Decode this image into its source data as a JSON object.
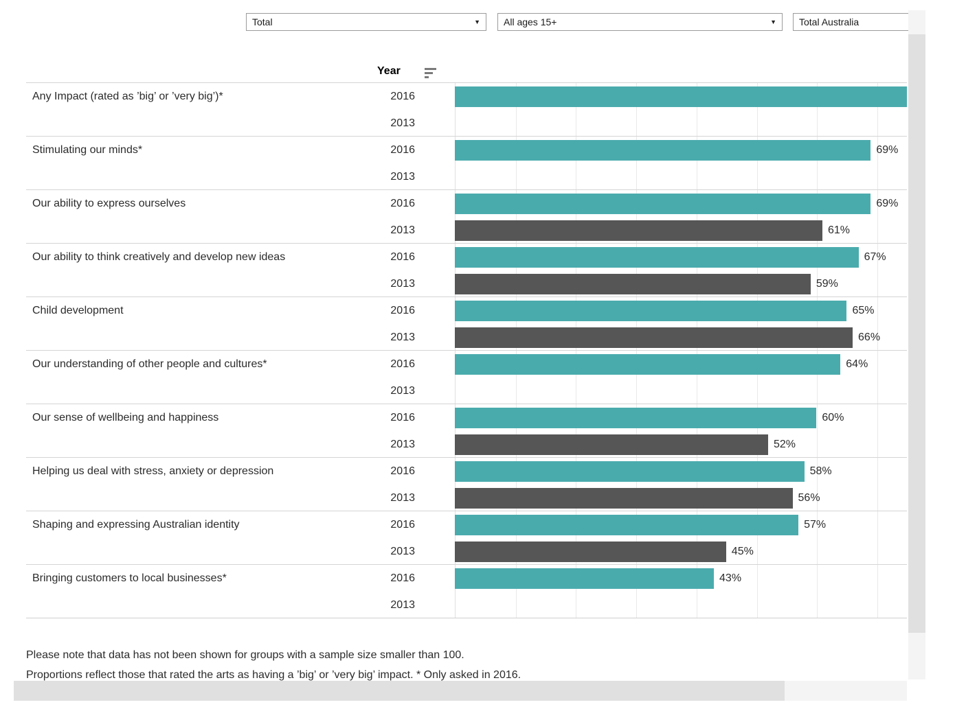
{
  "filters": {
    "dropdowns": [
      {
        "value": "Total"
      },
      {
        "value": "All ages 15+"
      },
      {
        "value": "Total Australia"
      }
    ]
  },
  "table": {
    "year_header": "Year",
    "year_labels": [
      "2016",
      "2013"
    ],
    "rows": [
      {
        "label": "Any Impact (rated as ’big’ or ’very big’)*",
        "y2016": {
          "width_pct": 100,
          "label": ""
        },
        "y2013": null
      },
      {
        "label": "Stimulating our minds*",
        "y2016": {
          "width_pct": 92,
          "label": "69%"
        },
        "y2013": null
      },
      {
        "label": "Our ability to express ourselves",
        "y2016": {
          "width_pct": 92,
          "label": "69%"
        },
        "y2013": {
          "width_pct": 81.3,
          "label": "61%"
        }
      },
      {
        "label": "Our ability to think creatively and develop new ideas",
        "y2016": {
          "width_pct": 89.3,
          "label": "67%"
        },
        "y2013": {
          "width_pct": 78.7,
          "label": "59%"
        }
      },
      {
        "label": "Child development",
        "y2016": {
          "width_pct": 86.7,
          "label": "65%"
        },
        "y2013": {
          "width_pct": 88,
          "label": "66%"
        }
      },
      {
        "label": "Our understanding of other people and cultures*",
        "y2016": {
          "width_pct": 85.3,
          "label": "64%"
        },
        "y2013": null
      },
      {
        "label": "Our sense of wellbeing and happiness",
        "y2016": {
          "width_pct": 80,
          "label": "60%"
        },
        "y2013": {
          "width_pct": 69.3,
          "label": "52%"
        }
      },
      {
        "label": "Helping us deal with stress, anxiety or depression",
        "y2016": {
          "width_pct": 77.3,
          "label": "58%"
        },
        "y2013": {
          "width_pct": 74.7,
          "label": "56%"
        }
      },
      {
        "label": "Shaping and expressing Australian identity",
        "y2016": {
          "width_pct": 76,
          "label": "57%"
        },
        "y2013": {
          "width_pct": 60,
          "label": "45%"
        }
      },
      {
        "label": "Bringing customers to local businesses*",
        "y2016": {
          "width_pct": 57.3,
          "label": "43%"
        },
        "y2013": null
      }
    ]
  },
  "footnotes": {
    "line1": "Please note that data has not been shown for groups with a sample size smaller than 100.",
    "line2": "Proportions reflect those that rated the arts as having a ’big’ or ’very big’ impact. * Only asked in 2016."
  },
  "colors": {
    "teal_2016": "#4aabad",
    "gray_2013": "#565656",
    "separator": "#d4d4d4",
    "gridline": "#e9e9e9"
  },
  "chart_data": {
    "type": "bar",
    "orientation": "horizontal",
    "title": "",
    "categories": [
      "Any Impact (rated as ’big’ or ’very big’)*",
      "Stimulating our minds*",
      "Our ability to express ourselves",
      "Our ability to think creatively and develop new ideas",
      "Child development",
      "Our understanding of other people and cultures*",
      "Our sense of wellbeing and happiness",
      "Helping us deal with stress, anxiety or depression",
      "Shaping and expressing Australian identity",
      "Bringing customers to local businesses*"
    ],
    "series": [
      {
        "name": "2016",
        "color": "#4aabad",
        "values": [
          null,
          69,
          69,
          67,
          65,
          64,
          60,
          58,
          57,
          43
        ],
        "note": "First bar (Any Impact) is drawn clipped at the right edge of the axis with no value label visible"
      },
      {
        "name": "2013",
        "color": "#565656",
        "values": [
          null,
          null,
          61,
          59,
          66,
          null,
          52,
          56,
          45,
          null
        ]
      }
    ],
    "value_label_format": "{value}%",
    "xlim": [
      0,
      75
    ],
    "gridlines": "vertical, every 10%",
    "legend": "none (years labelled per row)"
  }
}
